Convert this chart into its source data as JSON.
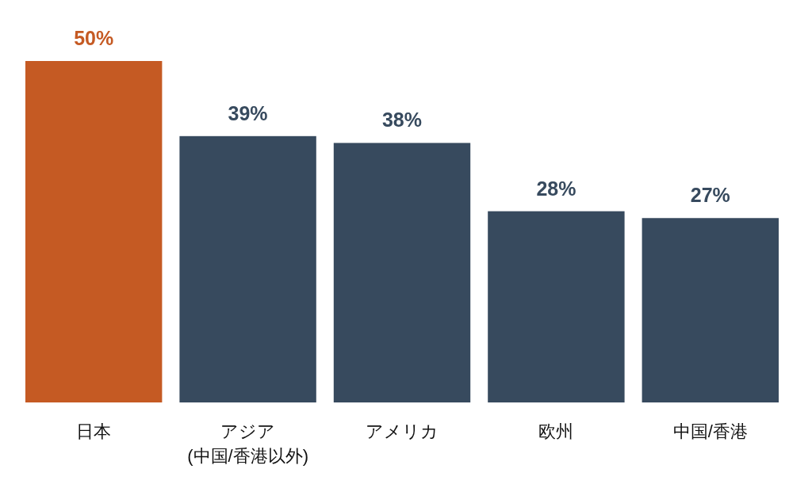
{
  "chart_data": {
    "type": "bar",
    "categories": [
      "日本",
      "アジア\n(中国/香港以外)",
      "アメリカ",
      "欧州",
      "中国/香港"
    ],
    "values": [
      50,
      39,
      38,
      28,
      27
    ],
    "colors": [
      "#c55a23",
      "#374a5e",
      "#374a5e",
      "#374a5e",
      "#374a5e"
    ],
    "value_labels": [
      "50%",
      "39%",
      "38%",
      "28%",
      "27%"
    ]
  }
}
